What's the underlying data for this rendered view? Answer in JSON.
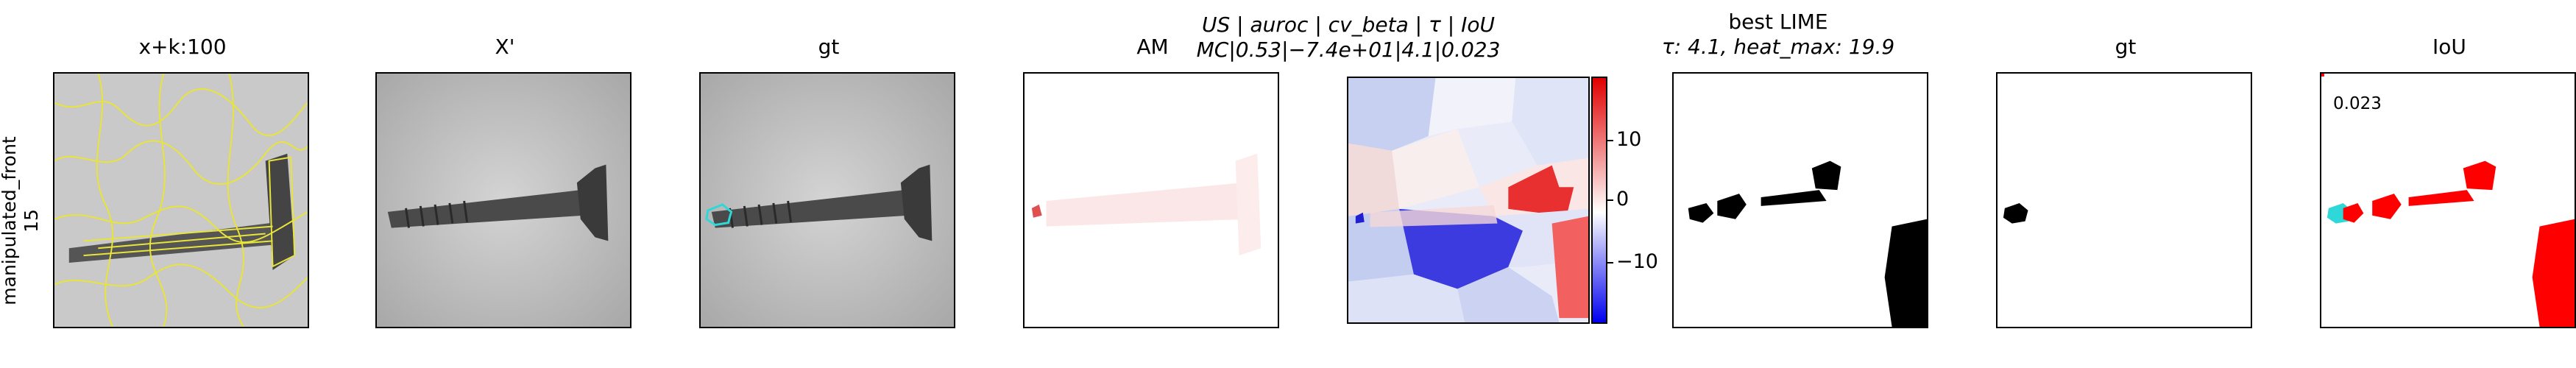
{
  "row_label": "manipulated_front\n15",
  "panels": [
    {
      "title": "x+k:100"
    },
    {
      "title": "X'"
    },
    {
      "title": "gt"
    },
    {
      "title": "AM"
    },
    {
      "title_line1": "US | auroc | cv_beta | τ | IoU",
      "title_line2": "MC|0.53|−7.4e+01|4.1|0.023"
    },
    {
      "title_line1": "best LIME",
      "title_line2": "τ: 4.1, heat_max: 19.9"
    },
    {
      "title": "gt"
    },
    {
      "title": "IoU",
      "value": "0.023"
    }
  ],
  "colorbar": {
    "ticks": [
      "10",
      "0",
      "−10"
    ],
    "colors": {
      "high": "#e00000",
      "mid": "#ffffff",
      "low": "#0000ee"
    }
  },
  "colors": {
    "overlay_yellow": "#e8e43a",
    "gt_cyan": "#2fd8d8",
    "iou_red": "#ff0000"
  }
}
